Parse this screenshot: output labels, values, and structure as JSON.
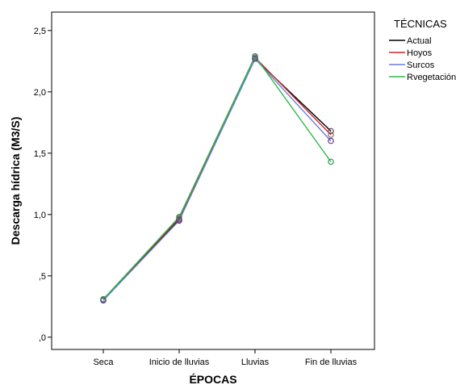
{
  "chart_data": {
    "type": "line",
    "xlabel": "ÉPOCAS",
    "ylabel": "Descarga hídrica (M3/S)",
    "categories": [
      "Seca",
      "Inicio de lluvias",
      "Lluvias",
      "Fin de lluvias"
    ],
    "ylim": [
      -0.1,
      2.65
    ],
    "yticks": [
      {
        "value": 0.0,
        "label": ",0"
      },
      {
        "value": 0.5,
        "label": ",5"
      },
      {
        "value": 1.0,
        "label": "1,0"
      },
      {
        "value": 1.5,
        "label": "1,5"
      },
      {
        "value": 2.0,
        "label": "2,0"
      },
      {
        "value": 2.5,
        "label": "2,5"
      }
    ],
    "grid": false,
    "legend": {
      "title": "TÉCNICAS",
      "position": "right"
    },
    "series": [
      {
        "name": "Actual",
        "color": "#000000",
        "marker_color": "#6b3f5e",
        "values": [
          0.3,
          0.96,
          2.27,
          1.68
        ]
      },
      {
        "name": "Hoyos",
        "color": "#cc2a2a",
        "marker_color": "#8a6a6a",
        "values": [
          0.31,
          0.97,
          2.28,
          1.65
        ]
      },
      {
        "name": "Surcos",
        "color": "#6a7fd4",
        "marker_color": "#5e3a8c",
        "values": [
          0.3,
          0.95,
          2.27,
          1.6
        ]
      },
      {
        "name": "Rvegetación",
        "color": "#2fb84b",
        "marker_color": "#3d8f5a",
        "values": [
          0.31,
          0.98,
          2.29,
          1.43
        ]
      }
    ]
  }
}
